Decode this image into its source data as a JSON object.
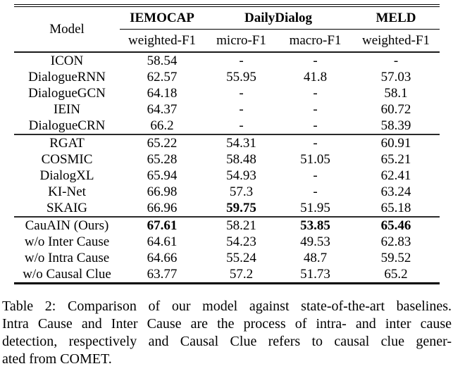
{
  "table": {
    "columns": {
      "model": "Model",
      "groups": [
        {
          "label": "IEMOCAP",
          "subcolumns": [
            "weighted-F1"
          ]
        },
        {
          "label": "DailyDialog",
          "subcolumns": [
            "micro-F1",
            "macro-F1"
          ]
        },
        {
          "label": "MELD",
          "subcolumns": [
            "weighted-F1"
          ]
        }
      ]
    },
    "row_groups": [
      {
        "rows": [
          {
            "model": "ICON",
            "values": [
              "58.54",
              "-",
              "-",
              "-"
            ],
            "bold_cols": []
          },
          {
            "model": "DialogueRNN",
            "values": [
              "62.57",
              "55.95",
              "41.8",
              "57.03"
            ],
            "bold_cols": []
          },
          {
            "model": "DialogueGCN",
            "values": [
              "64.18",
              "-",
              "-",
              "58.1"
            ],
            "bold_cols": []
          },
          {
            "model": "IEIN",
            "values": [
              "64.37",
              "-",
              "-",
              "60.72"
            ],
            "bold_cols": []
          },
          {
            "model": "DialogueCRN",
            "values": [
              "66.2",
              "-",
              "-",
              "58.39"
            ],
            "bold_cols": []
          }
        ]
      },
      {
        "rows": [
          {
            "model": "RGAT",
            "values": [
              "65.22",
              "54.31",
              "-",
              "60.91"
            ],
            "bold_cols": []
          },
          {
            "model": "COSMIC",
            "values": [
              "65.28",
              "58.48",
              "51.05",
              "65.21"
            ],
            "bold_cols": []
          },
          {
            "model": "DialogXL",
            "values": [
              "65.94",
              "54.93",
              "-",
              "62.41"
            ],
            "bold_cols": []
          },
          {
            "model": "KI-Net",
            "values": [
              "66.98",
              "57.3",
              "-",
              "63.24"
            ],
            "bold_cols": []
          },
          {
            "model": "SKAIG",
            "values": [
              "66.96",
              "59.75",
              "51.95",
              "65.18"
            ],
            "bold_cols": [
              1
            ]
          }
        ]
      },
      {
        "rows": [
          {
            "model": "CauAIN (Ours)",
            "values": [
              "67.61",
              "58.21",
              "53.85",
              "65.46"
            ],
            "bold_cols": [
              0,
              2,
              3
            ]
          },
          {
            "model": "w/o Inter Cause",
            "values": [
              "64.61",
              "54.23",
              "49.53",
              "62.83"
            ],
            "bold_cols": []
          },
          {
            "model": "w/o Intra Cause",
            "values": [
              "64.66",
              "55.24",
              "48.7",
              "59.52"
            ],
            "bold_cols": []
          },
          {
            "model": "w/o Causal Clue",
            "values": [
              "63.77",
              "57.2",
              "51.73",
              "65.2"
            ],
            "bold_cols": []
          }
        ]
      }
    ]
  },
  "caption": {
    "lines": [
      "Table 2: Comparison of our model against state-of-the-art baselines.",
      "Intra Cause and Inter Cause are the process of intra- and inter cause",
      "detection, respectively and Causal Clue refers to causal clue gener-",
      "ated from COMET."
    ]
  }
}
